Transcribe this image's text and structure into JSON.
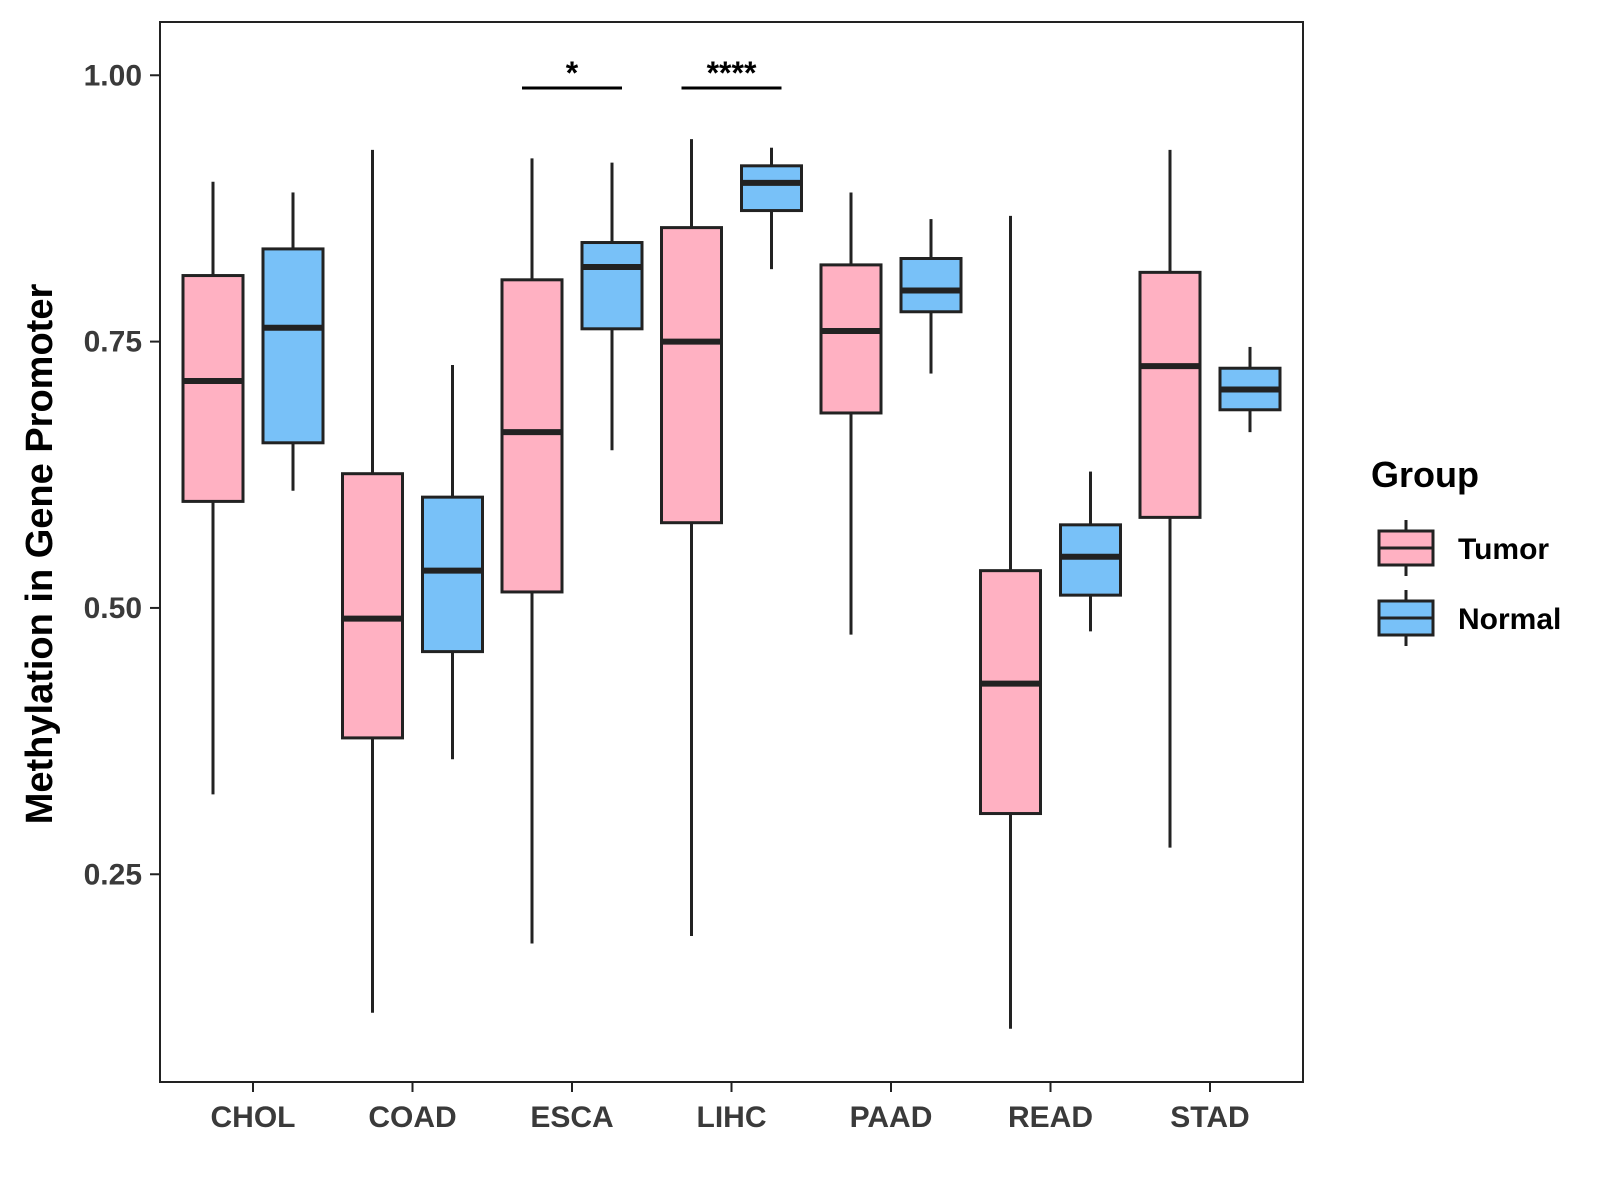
{
  "chart_data": {
    "type": "boxplot",
    "title": "",
    "xlabel": "",
    "ylabel": "Methylation in Gene Promoter",
    "ylim": [
      0.055,
      1.05
    ],
    "yticks": [
      0.25,
      0.5,
      0.75,
      1.0
    ],
    "ytick_labels": [
      "0.25",
      "0.50",
      "0.75",
      "1.00"
    ],
    "grid": false,
    "categories": [
      "CHOL",
      "COAD",
      "ESCA",
      "LIHC",
      "PAAD",
      "READ",
      "STAD"
    ],
    "legend": {
      "title": "Group",
      "placement": "right",
      "entries": [
        "Tumor",
        "Normal"
      ]
    },
    "colors": {
      "Tumor": "#ffb1c2",
      "Normal": "#78c1f8",
      "line": "#222222"
    },
    "series": [
      {
        "name": "Tumor",
        "boxes": [
          {
            "category": "CHOL",
            "min": 0.325,
            "q1": 0.6,
            "median": 0.713,
            "q3": 0.812,
            "max": 0.9
          },
          {
            "category": "COAD",
            "min": 0.12,
            "q1": 0.378,
            "median": 0.49,
            "q3": 0.626,
            "max": 0.93
          },
          {
            "category": "ESCA",
            "min": 0.185,
            "q1": 0.515,
            "median": 0.665,
            "q3": 0.808,
            "max": 0.922
          },
          {
            "category": "LIHC",
            "min": 0.192,
            "q1": 0.58,
            "median": 0.75,
            "q3": 0.857,
            "max": 0.94
          },
          {
            "category": "PAAD",
            "min": 0.475,
            "q1": 0.683,
            "median": 0.76,
            "q3": 0.822,
            "max": 0.89
          },
          {
            "category": "READ",
            "min": 0.105,
            "q1": 0.307,
            "median": 0.429,
            "q3": 0.535,
            "max": 0.868
          },
          {
            "category": "STAD",
            "min": 0.275,
            "q1": 0.585,
            "median": 0.727,
            "q3": 0.815,
            "max": 0.93
          }
        ]
      },
      {
        "name": "Normal",
        "boxes": [
          {
            "category": "CHOL",
            "min": 0.61,
            "q1": 0.655,
            "median": 0.763,
            "q3": 0.837,
            "max": 0.89
          },
          {
            "category": "COAD",
            "min": 0.358,
            "q1": 0.459,
            "median": 0.535,
            "q3": 0.604,
            "max": 0.728
          },
          {
            "category": "ESCA",
            "min": 0.648,
            "q1": 0.762,
            "median": 0.82,
            "q3": 0.843,
            "max": 0.918
          },
          {
            "category": "LIHC",
            "min": 0.818,
            "q1": 0.873,
            "median": 0.899,
            "q3": 0.915,
            "max": 0.932
          },
          {
            "category": "PAAD",
            "min": 0.72,
            "q1": 0.778,
            "median": 0.798,
            "q3": 0.828,
            "max": 0.865
          },
          {
            "category": "READ",
            "min": 0.478,
            "q1": 0.512,
            "median": 0.548,
            "q3": 0.578,
            "max": 0.628
          },
          {
            "category": "STAD",
            "min": 0.665,
            "q1": 0.686,
            "median": 0.705,
            "q3": 0.725,
            "max": 0.745
          }
        ]
      }
    ],
    "annotations": [
      {
        "category": "ESCA",
        "label": "*",
        "y": 0.988
      },
      {
        "category": "LIHC",
        "label": "****",
        "y": 0.988
      }
    ]
  }
}
